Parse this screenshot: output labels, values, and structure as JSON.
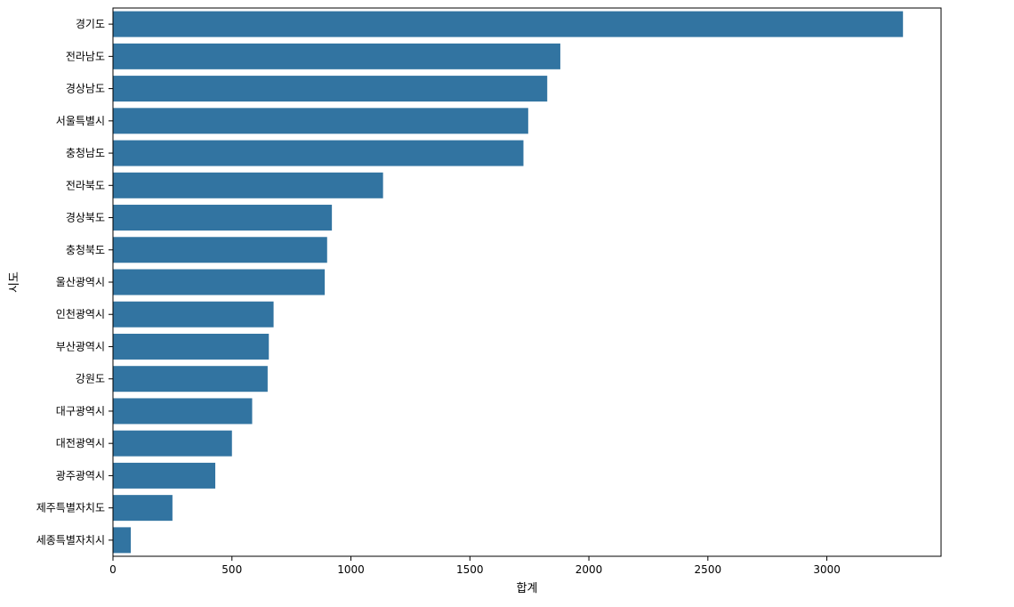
{
  "chart_data": {
    "type": "bar",
    "orientation": "horizontal",
    "title": "",
    "xlabel": "합계",
    "ylabel": "시도",
    "xlim": [
      0,
      3480
    ],
    "xticks": [
      0,
      500,
      1000,
      1500,
      2000,
      2500,
      3000
    ],
    "grid": false,
    "bar_color": "#3274a1",
    "categories": [
      "경기도",
      "전라남도",
      "경상남도",
      "서울특별시",
      "충청남도",
      "전라북도",
      "경상북도",
      "충청북도",
      "울산광역시",
      "인천광역시",
      "부산광역시",
      "강원도",
      "대구광역시",
      "대전광역시",
      "광주광역시",
      "제주특별자치도",
      "세종특별자치시"
    ],
    "values": [
      3320,
      1880,
      1825,
      1745,
      1725,
      1135,
      920,
      900,
      890,
      675,
      655,
      650,
      585,
      500,
      430,
      250,
      75
    ]
  }
}
